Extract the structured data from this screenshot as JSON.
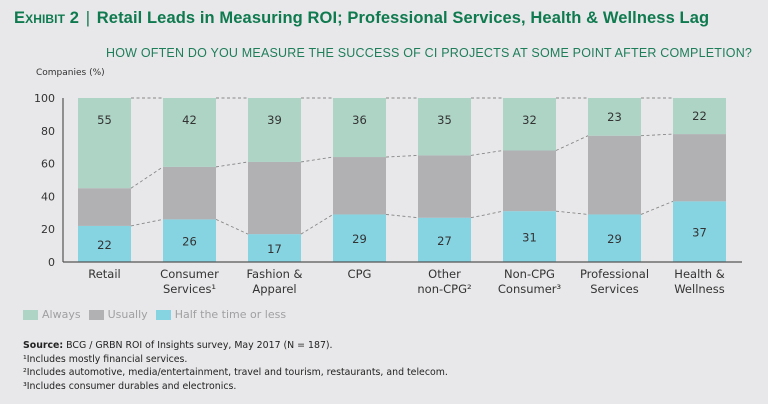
{
  "header": {
    "exhibit": "Exhibit 2",
    "separator": "|",
    "title": "Retail Leads in Measuring ROI; Professional Services, Health & Wellness Lag",
    "subtitle": "HOW OFTEN DO YOU MEASURE THE SUCCESS OF CI PROJECTS AT SOME POINT AFTER COMPLETION?"
  },
  "colors": {
    "title": "#0f7a4f",
    "always": "#aed4c6",
    "usually": "#b1b1b3",
    "half_or_less": "#86d3e2",
    "background": "#e8e8ea"
  },
  "chart_data": {
    "type": "bar",
    "stacked": true,
    "title": "HOW OFTEN DO YOU MEASURE THE SUCCESS OF CI PROJECTS AT SOME POINT AFTER COMPLETION?",
    "ylabel": "Companies (%)",
    "xlabel": "",
    "ylim": [
      0,
      100
    ],
    "yticks": [
      0,
      20,
      40,
      60,
      80,
      100
    ],
    "grid": false,
    "connector_lines": "dashed",
    "legend_position": "bottom-left",
    "categories": [
      {
        "label": "Retail",
        "sup": ""
      },
      {
        "label": "Consumer Services",
        "sup": "1"
      },
      {
        "label": "Fashion & Apparel",
        "sup": ""
      },
      {
        "label": "CPG",
        "sup": ""
      },
      {
        "label": "Other non-CPG",
        "sup": "2"
      },
      {
        "label": "Non-CPG Consumer",
        "sup": "3"
      },
      {
        "label": "Professional Services",
        "sup": ""
      },
      {
        "label": "Health & Wellness",
        "sup": ""
      }
    ],
    "category_lines": [
      [
        "Retail"
      ],
      [
        "Consumer",
        "Services¹"
      ],
      [
        "Fashion &",
        "Apparel"
      ],
      [
        "CPG"
      ],
      [
        "Other",
        "non-CPG²"
      ],
      [
        "Non-CPG",
        "Consumer³"
      ],
      [
        "Professional",
        "Services"
      ],
      [
        "Health &",
        "Wellness"
      ]
    ],
    "series": [
      {
        "name": "Half the time or less",
        "color": "#86d3e2",
        "values": [
          22,
          26,
          17,
          29,
          27,
          31,
          29,
          37
        ],
        "labeled": true
      },
      {
        "name": "Usually",
        "color": "#b1b1b3",
        "values": [
          23,
          32,
          44,
          35,
          38,
          37,
          48,
          41
        ],
        "labeled": false
      },
      {
        "name": "Always",
        "color": "#aed4c6",
        "values": [
          55,
          42,
          39,
          36,
          35,
          32,
          23,
          22
        ],
        "labeled": true
      }
    ]
  },
  "legend": [
    {
      "label": "Always",
      "color": "#aed4c6"
    },
    {
      "label": "Usually",
      "color": "#b1b1b3"
    },
    {
      "label": "Half the time or less",
      "color": "#86d3e2"
    }
  ],
  "notes": {
    "source_label": "Source:",
    "source_text": " BCG / GRBN ROI of Insights survey, May 2017 (N = 187).",
    "footnotes": [
      "¹Includes mostly financial services.",
      "²Includes automotive, media/entertainment, travel and tourism, restaurants, and telecom.",
      "³Includes consumer durables and electronics."
    ]
  }
}
